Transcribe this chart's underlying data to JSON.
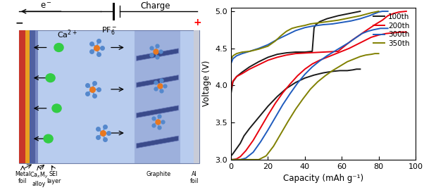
{
  "ylabel": "Voltage (V)",
  "xlabel": "Capacity (mAh g⁻¹)",
  "ylim": [
    3.0,
    5.05
  ],
  "xlim": [
    0,
    100
  ],
  "yticks": [
    3.0,
    3.5,
    4.0,
    4.5,
    5.0
  ],
  "xticks": [
    0,
    20,
    40,
    60,
    80,
    100
  ],
  "legend_labels": [
    "100th",
    "200th",
    "300th",
    "350th"
  ],
  "colors": [
    "#1a1a1a",
    "#e8000d",
    "#1f5bbd",
    "#808000"
  ],
  "linewidth": 1.4,
  "curves": {
    "100th": {
      "color": "#1a1a1a",
      "charge_x": [
        0,
        1,
        3,
        6,
        10,
        15,
        20,
        25,
        30,
        35,
        40,
        44,
        45,
        46,
        47,
        48,
        50,
        52,
        55,
        58,
        62,
        66,
        70
      ],
      "charge_y": [
        3.9,
        4.05,
        4.12,
        4.18,
        4.25,
        4.32,
        4.38,
        4.42,
        4.44,
        4.45,
        4.45,
        4.46,
        4.78,
        4.82,
        4.84,
        4.86,
        4.88,
        4.9,
        4.92,
        4.94,
        4.96,
        4.98,
        5.0
      ],
      "discharge_x": [
        70,
        69,
        68,
        66,
        63,
        59,
        55,
        50,
        45,
        40,
        35,
        30,
        25,
        20,
        15,
        10,
        7,
        5,
        3,
        1,
        0
      ],
      "discharge_y": [
        4.22,
        4.22,
        4.22,
        4.21,
        4.2,
        4.2,
        4.19,
        4.17,
        4.14,
        4.1,
        4.04,
        3.96,
        3.85,
        3.72,
        3.57,
        3.42,
        3.32,
        3.22,
        3.15,
        3.08,
        3.05
      ]
    },
    "200th": {
      "color": "#e8000d",
      "charge_x": [
        0,
        1,
        3,
        6,
        10,
        15,
        20,
        25,
        30,
        35,
        42,
        50,
        58,
        65,
        72,
        78,
        82,
        84,
        85,
        86,
        88,
        91,
        95
      ],
      "charge_y": [
        3.96,
        4.06,
        4.12,
        4.16,
        4.22,
        4.28,
        4.34,
        4.38,
        4.41,
        4.43,
        4.44,
        4.45,
        4.46,
        4.6,
        4.72,
        4.82,
        4.88,
        4.92,
        4.94,
        4.95,
        4.97,
        4.99,
        5.0
      ],
      "discharge_x": [
        95,
        92,
        88,
        84,
        80,
        76,
        72,
        68,
        64,
        60,
        56,
        52,
        48,
        44,
        40,
        36,
        32,
        28,
        24,
        20,
        16,
        12,
        8,
        5,
        3,
        1,
        0
      ],
      "discharge_y": [
        4.72,
        4.72,
        4.71,
        4.7,
        4.68,
        4.65,
        4.6,
        4.55,
        4.5,
        4.46,
        4.42,
        4.38,
        4.34,
        4.29,
        4.22,
        4.13,
        4.02,
        3.9,
        3.76,
        3.6,
        3.43,
        3.26,
        3.12,
        3.04,
        3.01,
        3.0,
        3.0
      ]
    },
    "300th": {
      "color": "#1f5bbd",
      "charge_x": [
        0,
        1,
        3,
        6,
        10,
        15,
        20,
        25,
        30,
        35,
        40,
        44,
        47,
        50,
        55,
        60,
        65,
        70,
        75,
        78,
        80,
        82,
        83,
        84,
        85
      ],
      "charge_y": [
        4.3,
        4.36,
        4.4,
        4.43,
        4.46,
        4.5,
        4.55,
        4.62,
        4.68,
        4.74,
        4.78,
        4.8,
        4.81,
        4.82,
        4.83,
        4.85,
        4.87,
        4.9,
        4.94,
        4.97,
        4.99,
        5.0,
        5.0,
        5.0,
        5.0
      ],
      "discharge_x": [
        85,
        83,
        81,
        79,
        77,
        74,
        71,
        68,
        64,
        60,
        56,
        52,
        48,
        44,
        40,
        36,
        32,
        28,
        24,
        20,
        16,
        12,
        8,
        5,
        3,
        1,
        0
      ],
      "discharge_y": [
        4.77,
        4.77,
        4.77,
        4.76,
        4.75,
        4.73,
        4.7,
        4.65,
        4.58,
        4.52,
        4.46,
        4.4,
        4.33,
        4.25,
        4.15,
        4.03,
        3.89,
        3.74,
        3.57,
        3.4,
        3.24,
        3.1,
        3.02,
        3.0,
        3.0,
        3.0,
        3.0
      ]
    },
    "350th": {
      "color": "#808000",
      "charge_x": [
        0,
        1,
        3,
        6,
        10,
        15,
        20,
        24,
        27,
        30,
        33,
        36,
        38,
        40,
        43,
        46,
        49,
        52,
        55,
        58,
        62,
        66,
        70,
        73,
        76,
        78,
        80
      ],
      "charge_y": [
        4.35,
        4.4,
        4.43,
        4.45,
        4.46,
        4.49,
        4.53,
        4.6,
        4.67,
        4.73,
        4.77,
        4.79,
        4.8,
        4.81,
        4.83,
        4.84,
        4.85,
        4.86,
        4.87,
        4.88,
        4.9,
        4.92,
        4.94,
        4.96,
        4.98,
        4.99,
        5.0
      ],
      "discharge_x": [
        80,
        78,
        76,
        73,
        70,
        67,
        63,
        59,
        55,
        51,
        47,
        43,
        39,
        35,
        31,
        27,
        23,
        19,
        15,
        11,
        8,
        5,
        3,
        1,
        0
      ],
      "discharge_y": [
        4.43,
        4.43,
        4.42,
        4.41,
        4.39,
        4.36,
        4.32,
        4.26,
        4.2,
        4.13,
        4.05,
        3.95,
        3.82,
        3.68,
        3.52,
        3.35,
        3.18,
        3.05,
        3.0,
        3.0,
        3.0,
        3.0,
        3.0,
        3.0,
        3.0
      ]
    }
  }
}
